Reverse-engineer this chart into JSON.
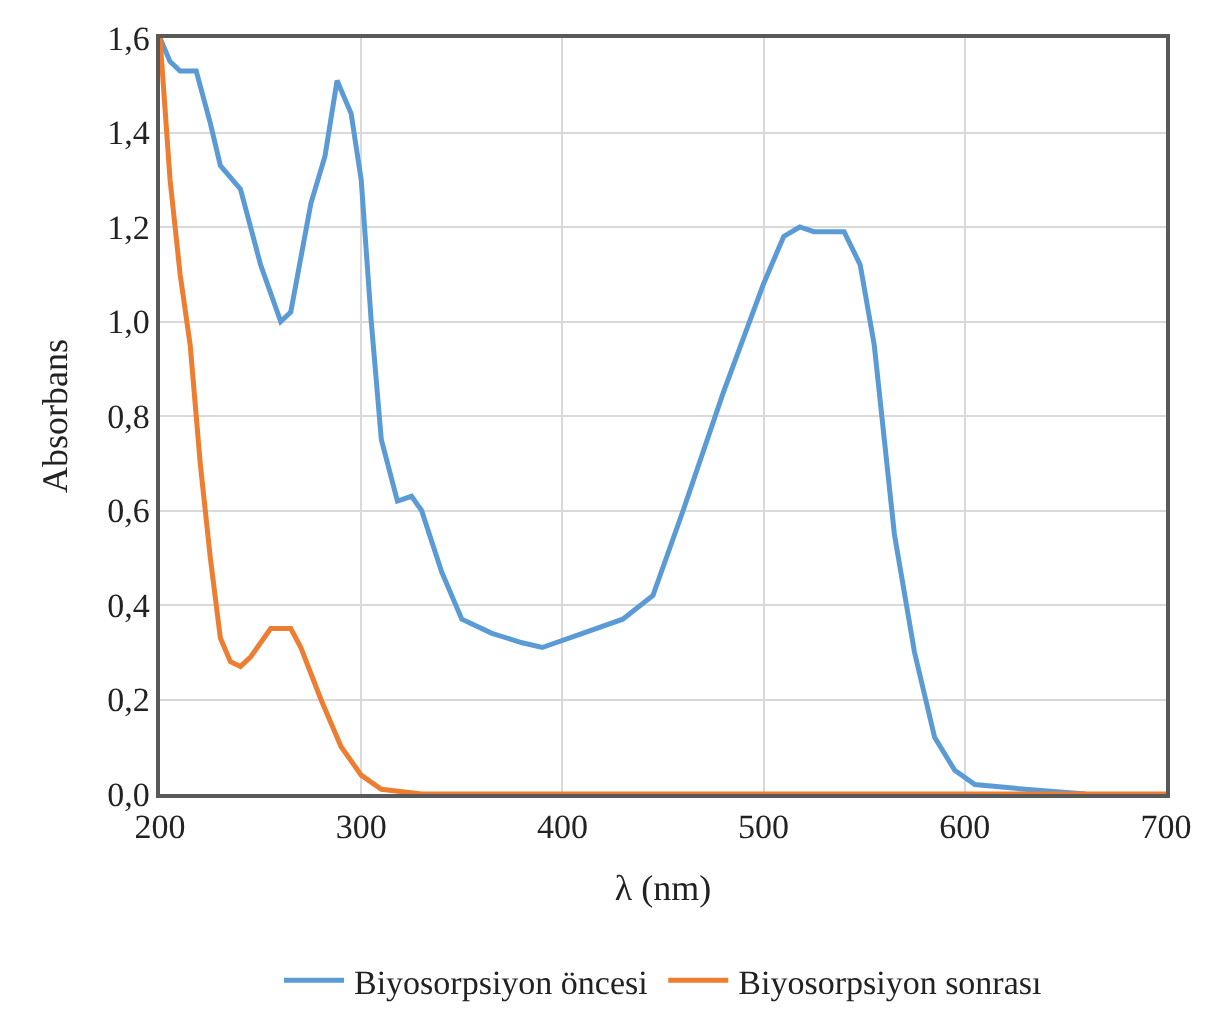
{
  "chart_data": {
    "type": "line",
    "xlabel": "λ (nm)",
    "ylabel": "Absorbans",
    "xlim": [
      200,
      700
    ],
    "xticks": [
      200,
      300,
      400,
      500,
      600,
      700
    ],
    "ylim": [
      0,
      1.6
    ],
    "yticks": [
      {
        "value": 0,
        "label": "0,0"
      },
      {
        "value": 0.2,
        "label": "0,2"
      },
      {
        "value": 0.4,
        "label": "0,4"
      },
      {
        "value": 0.6,
        "label": "0,6"
      },
      {
        "value": 0.8,
        "label": "0,8"
      },
      {
        "value": 1.0,
        "label": "1,0"
      },
      {
        "value": 1.2,
        "label": "1,2"
      },
      {
        "value": 1.4,
        "label": "1,4"
      },
      {
        "value": 1.6,
        "label": "1,6"
      }
    ],
    "grid": true,
    "legend": "bottom",
    "marker": "none",
    "line_style": "solid",
    "series": [
      {
        "name": "Biyosorpsiyon öncesi",
        "color": "#5b9bd5",
        "x": [
          200,
          205,
          210,
          218,
          225,
          230,
          240,
          250,
          260,
          265,
          275,
          282,
          288,
          295,
          300,
          305,
          310,
          318,
          325,
          330,
          340,
          350,
          365,
          380,
          390,
          410,
          430,
          445,
          460,
          480,
          500,
          510,
          518,
          525,
          540,
          548,
          555,
          565,
          575,
          585,
          595,
          605,
          630,
          660
        ],
        "values": [
          1.6,
          1.55,
          1.53,
          1.53,
          1.42,
          1.33,
          1.28,
          1.12,
          1.0,
          1.02,
          1.25,
          1.35,
          1.51,
          1.44,
          1.3,
          1.0,
          0.75,
          0.62,
          0.63,
          0.6,
          0.47,
          0.37,
          0.34,
          0.32,
          0.31,
          0.34,
          0.37,
          0.42,
          0.6,
          0.85,
          1.08,
          1.18,
          1.2,
          1.19,
          1.19,
          1.12,
          0.95,
          0.55,
          0.3,
          0.12,
          0.05,
          0.02,
          0.01,
          0.0
        ]
      },
      {
        "name": "Biyosorpsiyon sonrası",
        "color": "#ed7d31",
        "x": [
          200,
          205,
          210,
          215,
          220,
          225,
          230,
          235,
          240,
          245,
          255,
          265,
          270,
          280,
          290,
          300,
          310,
          330,
          700
        ],
        "values": [
          1.6,
          1.3,
          1.1,
          0.95,
          0.7,
          0.5,
          0.33,
          0.28,
          0.27,
          0.29,
          0.35,
          0.35,
          0.31,
          0.2,
          0.1,
          0.04,
          0.01,
          0.0,
          0.0
        ]
      }
    ]
  }
}
